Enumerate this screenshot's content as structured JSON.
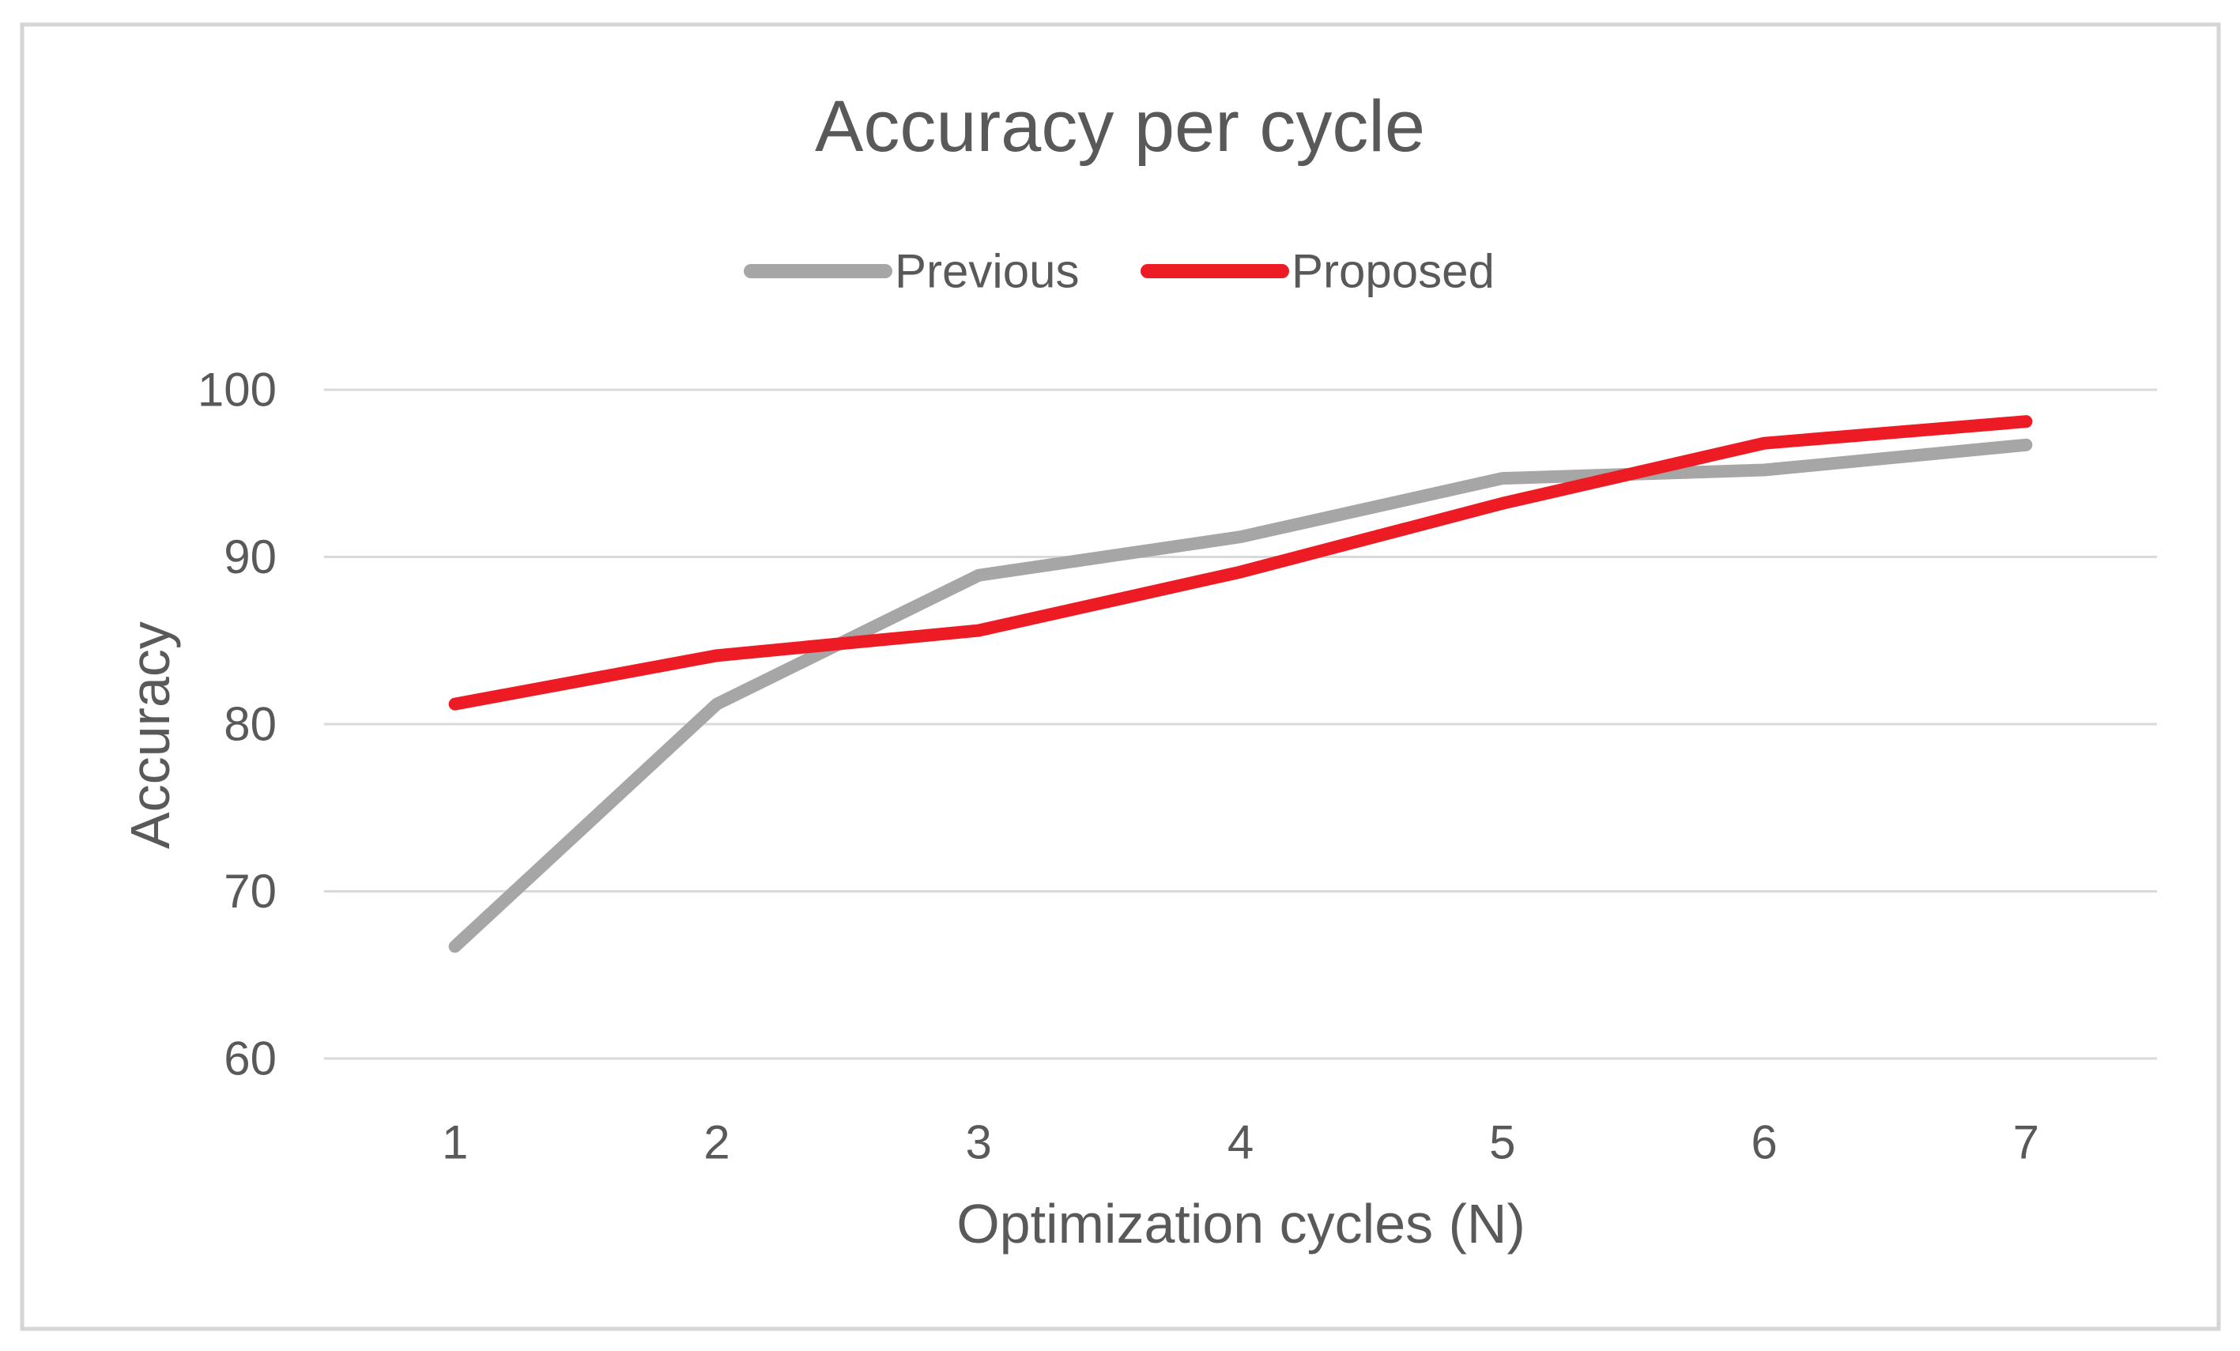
{
  "chart": {
    "colors": {
      "text": "#595959",
      "gridline": "#D9D9D9",
      "border": "#D5D5D8",
      "background": "#FFFFFF"
    }
  },
  "chart_data": {
    "type": "line",
    "title": "Accuracy per cycle",
    "xlabel": "Optimization cycles (N)",
    "ylabel": "Accuracy",
    "categories": [
      "1",
      "2",
      "3",
      "4",
      "5",
      "6",
      "7"
    ],
    "yticks": [
      60,
      70,
      80,
      90,
      100
    ],
    "ylim": [
      60,
      100
    ],
    "grid": true,
    "legend_position": "top-center",
    "series": [
      {
        "name": "Previous",
        "color": "#A6A6A6",
        "values": [
          66.7,
          81.2,
          88.9,
          91.2,
          94.7,
          95.2,
          96.7
        ]
      },
      {
        "name": "Proposed",
        "color": "#ED1C24",
        "values": [
          81.2,
          84.1,
          85.6,
          89.1,
          93.2,
          96.8,
          98.1
        ]
      }
    ]
  }
}
